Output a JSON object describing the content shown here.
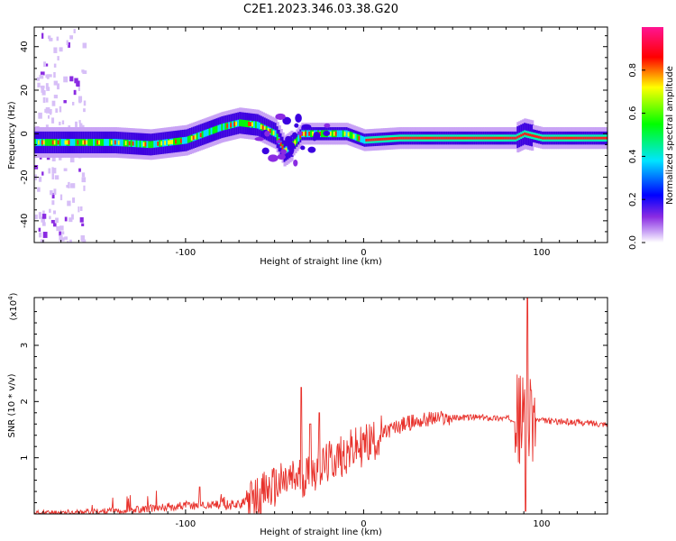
{
  "title": "C2E1.2023.346.03.38.G20",
  "chart_data": [
    {
      "type": "heatmap",
      "xlabel": "Height of straight line (km)",
      "ylabel": "Frequency (Hz)",
      "xlim": [
        -185,
        137
      ],
      "ylim": [
        -50,
        49
      ],
      "x_ticks": [
        -100,
        0,
        100
      ],
      "y_ticks": [
        40,
        20,
        0,
        -20,
        -40
      ],
      "colorbar": {
        "label": "Normalized spectral amplitude",
        "range": [
          0,
          1
        ],
        "ticks": [
          "0.0",
          "0.2",
          "0.4",
          "0.6",
          "0.8"
        ],
        "colors": [
          "#ffffff",
          "#c9a3f5",
          "#8a2be2",
          "#0000ff",
          "#00e5ff",
          "#00ff00",
          "#ffff00",
          "#ff0000",
          "#ff1493"
        ]
      },
      "ridge": [
        {
          "x": -180,
          "y": -4
        },
        {
          "x": -160,
          "y": -4
        },
        {
          "x": -140,
          "y": -4
        },
        {
          "x": -120,
          "y": -5
        },
        {
          "x": -100,
          "y": -3
        },
        {
          "x": -90,
          "y": 0
        },
        {
          "x": -80,
          "y": 3
        },
        {
          "x": -70,
          "y": 5
        },
        {
          "x": -60,
          "y": 4
        },
        {
          "x": -50,
          "y": 0
        },
        {
          "x": -45,
          "y": -8
        },
        {
          "x": -40,
          "y": -5
        },
        {
          "x": -35,
          "y": 0
        },
        {
          "x": -30,
          "y": 0
        },
        {
          "x": -20,
          "y": 0
        },
        {
          "x": -10,
          "y": 0
        },
        {
          "x": 0,
          "y": -3
        },
        {
          "x": 20,
          "y": -2
        },
        {
          "x": 60,
          "y": -2
        },
        {
          "x": 85,
          "y": -2
        },
        {
          "x": 90,
          "y": 0
        },
        {
          "x": 100,
          "y": -2
        },
        {
          "x": 137,
          "y": -2
        }
      ]
    },
    {
      "type": "line",
      "xlabel": "Height of straight line (km)",
      "ylabel": "SNR (10 * v/v)",
      "y_multiplier": "(x10",
      "y_multiplier_exp": "4",
      "y_multiplier_close": ")",
      "xlim": [
        -185,
        137
      ],
      "ylim": [
        0,
        3.85
      ],
      "x_ticks": [
        -100,
        0,
        100
      ],
      "y_ticks": [
        1,
        2,
        3
      ],
      "color": "#e8322c",
      "trend": [
        {
          "x": -185,
          "y": 0.02
        },
        {
          "x": -160,
          "y": 0.03
        },
        {
          "x": -140,
          "y": 0.05
        },
        {
          "x": -120,
          "y": 0.1
        },
        {
          "x": -100,
          "y": 0.15
        },
        {
          "x": -80,
          "y": 0.15
        },
        {
          "x": -65,
          "y": 0.2
        },
        {
          "x": -55,
          "y": 0.4
        },
        {
          "x": -45,
          "y": 0.55
        },
        {
          "x": -35,
          "y": 0.65
        },
        {
          "x": -25,
          "y": 0.8
        },
        {
          "x": -15,
          "y": 1.0
        },
        {
          "x": -5,
          "y": 1.15
        },
        {
          "x": 5,
          "y": 1.3
        },
        {
          "x": 15,
          "y": 1.5
        },
        {
          "x": 25,
          "y": 1.62
        },
        {
          "x": 40,
          "y": 1.7
        },
        {
          "x": 60,
          "y": 1.72
        },
        {
          "x": 80,
          "y": 1.7
        },
        {
          "x": 90,
          "y": 1.68
        },
        {
          "x": 100,
          "y": 1.66
        },
        {
          "x": 137,
          "y": 1.6
        }
      ],
      "peaks": [
        {
          "x": -92,
          "y": 0.48
        },
        {
          "x": -35,
          "y": 2.25
        },
        {
          "x": -30,
          "y": 1.6
        },
        {
          "x": -25,
          "y": 1.8
        },
        {
          "x": 92,
          "y": 3.85
        },
        {
          "x": 94,
          "y": 2.2
        },
        {
          "x": 91,
          "y": 0.05
        }
      ]
    }
  ]
}
